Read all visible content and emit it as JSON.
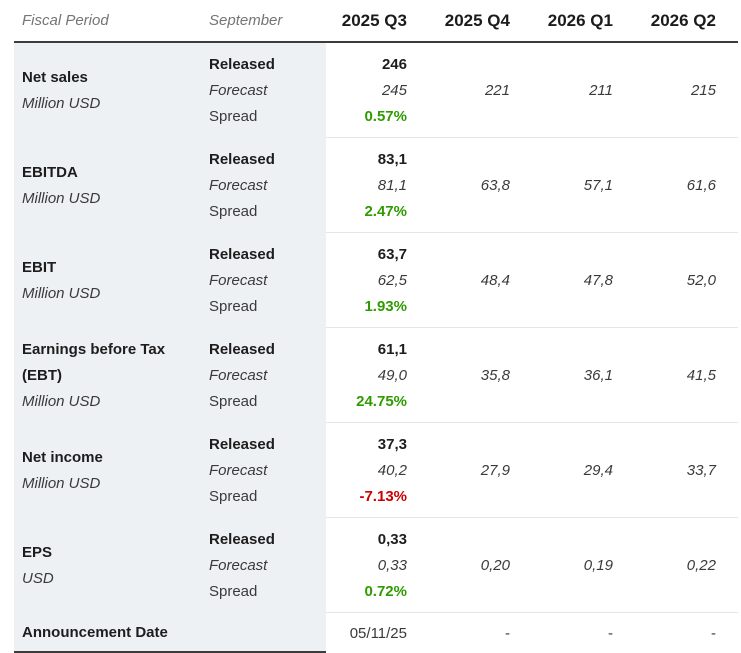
{
  "chart_data": {
    "type": "table",
    "columns": [
      "Fiscal Period",
      "September",
      "2025 Q3",
      "2025 Q4",
      "2026 Q1",
      "2026 Q2"
    ],
    "rows": [
      [
        "Net sales - Million USD",
        "Released",
        "246",
        "",
        "",
        ""
      ],
      [
        "Net sales - Million USD",
        "Forecast",
        "245",
        "221",
        "211",
        "215"
      ],
      [
        "Net sales - Million USD",
        "Spread",
        "0.57%",
        "",
        "",
        ""
      ],
      [
        "EBITDA - Million USD",
        "Released",
        "83,1",
        "",
        "",
        ""
      ],
      [
        "EBITDA - Million USD",
        "Forecast",
        "81,1",
        "63,8",
        "57,1",
        "61,6"
      ],
      [
        "EBITDA - Million USD",
        "Spread",
        "2.47%",
        "",
        "",
        ""
      ],
      [
        "EBIT - Million USD",
        "Released",
        "63,7",
        "",
        "",
        ""
      ],
      [
        "EBIT - Million USD",
        "Forecast",
        "62,5",
        "48,4",
        "47,8",
        "52,0"
      ],
      [
        "EBIT - Million USD",
        "Spread",
        "1.93%",
        "",
        "",
        ""
      ],
      [
        "Earnings before Tax (EBT) - Million USD",
        "Released",
        "61,1",
        "",
        "",
        ""
      ],
      [
        "Earnings before Tax (EBT) - Million USD",
        "Forecast",
        "49,0",
        "35,8",
        "36,1",
        "41,5"
      ],
      [
        "Earnings before Tax (EBT) - Million USD",
        "Spread",
        "24.75%",
        "",
        "",
        ""
      ],
      [
        "Net income - Million USD",
        "Released",
        "37,3",
        "",
        "",
        ""
      ],
      [
        "Net income - Million USD",
        "Forecast",
        "40,2",
        "27,9",
        "29,4",
        "33,7"
      ],
      [
        "Net income - Million USD",
        "Spread",
        "-7.13%",
        "",
        "",
        ""
      ],
      [
        "EPS - USD",
        "Released",
        "0,33",
        "",
        "",
        ""
      ],
      [
        "EPS - USD",
        "Forecast",
        "0,33",
        "0,20",
        "0,19",
        "0,22"
      ],
      [
        "EPS - USD",
        "Spread",
        "0.72%",
        "",
        "",
        ""
      ],
      [
        "Announcement Date",
        "",
        "05/11/25",
        "-",
        "-",
        "-"
      ]
    ]
  },
  "header": {
    "fiscal_period": "Fiscal Period",
    "month": "September",
    "quarters": [
      "2025 Q3",
      "2025 Q4",
      "2026 Q1",
      "2026 Q2"
    ]
  },
  "row_labels": {
    "released": "Released",
    "forecast": "Forecast",
    "spread": "Spread"
  },
  "metrics": [
    {
      "name": "Net sales",
      "unit": "Million USD",
      "released": "246",
      "forecast": [
        "245",
        "221",
        "211",
        "215"
      ],
      "spread": "0.57%",
      "spread_positive": true
    },
    {
      "name": "EBITDA",
      "unit": "Million USD",
      "released": "83,1",
      "forecast": [
        "81,1",
        "63,8",
        "57,1",
        "61,6"
      ],
      "spread": "2.47%",
      "spread_positive": true
    },
    {
      "name": "EBIT",
      "unit": "Million USD",
      "released": "63,7",
      "forecast": [
        "62,5",
        "48,4",
        "47,8",
        "52,0"
      ],
      "spread": "1.93%",
      "spread_positive": true
    },
    {
      "name": "Earnings before Tax (EBT)",
      "unit": "Million USD",
      "released": "61,1",
      "forecast": [
        "49,0",
        "35,8",
        "36,1",
        "41,5"
      ],
      "spread": "24.75%",
      "spread_positive": true
    },
    {
      "name": "Net income",
      "unit": "Million USD",
      "released": "37,3",
      "forecast": [
        "40,2",
        "27,9",
        "29,4",
        "33,7"
      ],
      "spread": "-7.13%",
      "spread_positive": false
    },
    {
      "name": "EPS",
      "unit": "USD",
      "released": "0,33",
      "forecast": [
        "0,33",
        "0,20",
        "0,19",
        "0,22"
      ],
      "spread": "0.72%",
      "spread_positive": true
    }
  ],
  "announcement": {
    "label": "Announcement Date",
    "values": [
      "05/11/25",
      "-",
      "-",
      "-"
    ]
  },
  "colors": {
    "positive": "#2f9b00",
    "negative": "#cc0000",
    "shaded_bg": "#eef1f4",
    "header_border": "#3c3c3c",
    "separator": "#e6e6e6",
    "muted_text": "#757575",
    "dark_text": "#1d1d1d",
    "body_text": "#3a3a3a"
  }
}
